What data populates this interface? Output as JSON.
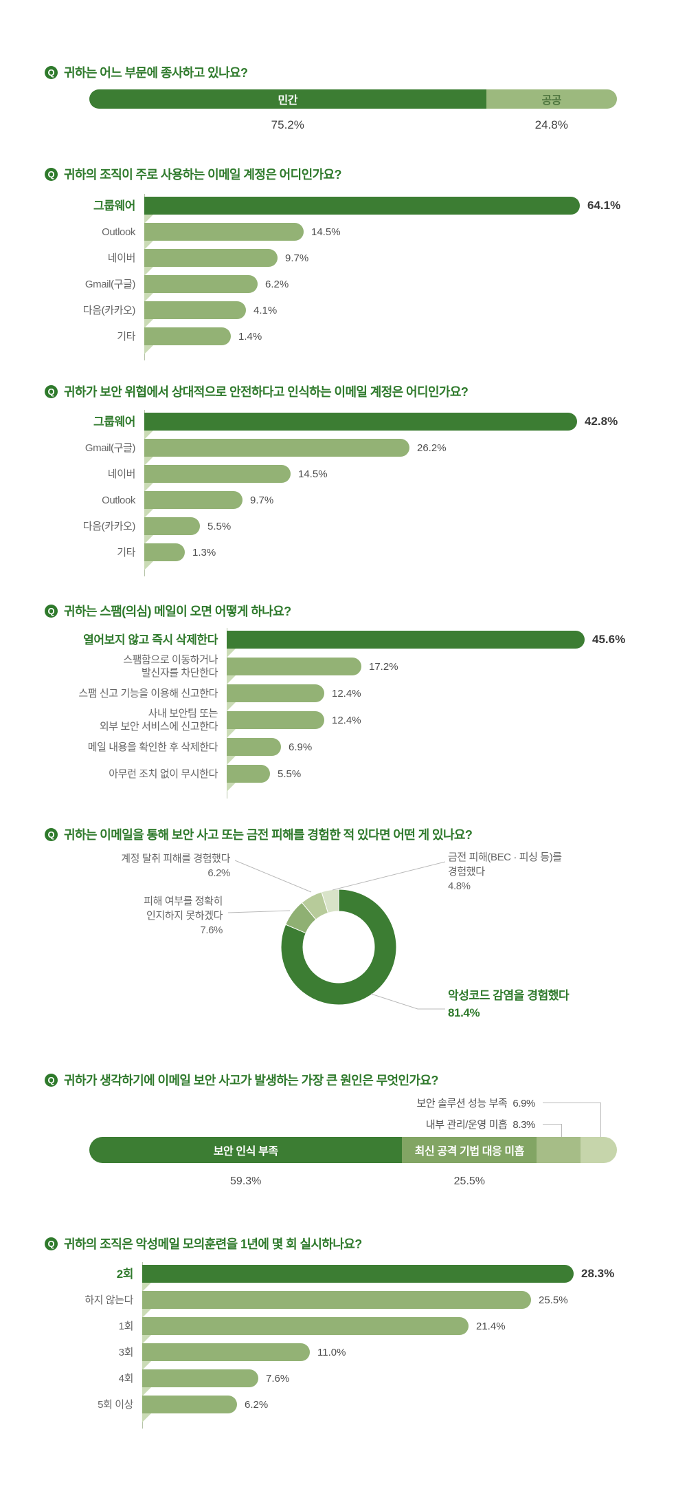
{
  "q_badge": "Q",
  "palette": {
    "dark_green": "#3c7d33",
    "medium_green": "#93b275",
    "question_green": "#2f7a2c",
    "stack_light": "#a6bd87",
    "stack_lightest": "#c6d5ab",
    "public_segment": "#9cb97e"
  },
  "chart_data": [
    {
      "type": "bar",
      "subtype": "stacked-horizontal",
      "title": "귀하는 어느 부문에 종사하고 있나요?",
      "categories": [
        "민간",
        "공공"
      ],
      "values": [
        75.2,
        24.8
      ],
      "value_labels": [
        "75.2%",
        "24.8%"
      ]
    },
    {
      "type": "bar",
      "subtype": "horizontal-rows",
      "title": "귀하의 조직이 주로 사용하는 이메일 계정은 어디인가요?",
      "categories": [
        "그룹웨어",
        "Outlook",
        "네이버",
        "Gmail(구글)",
        "다음(카카오)",
        "기타"
      ],
      "values": [
        64.1,
        14.5,
        9.7,
        6.2,
        4.1,
        1.4
      ],
      "value_labels": [
        "64.1%",
        "14.5%",
        "9.7%",
        "6.2%",
        "4.1%",
        "1.4%"
      ]
    },
    {
      "type": "bar",
      "subtype": "horizontal-rows",
      "title": "귀하가 보안 위협에서 상대적으로 안전하다고 인식하는 이메일 계정은 어디인가요?",
      "categories": [
        "그룹웨어",
        "Gmail(구글)",
        "네이버",
        "Outlook",
        "다음(카카오)",
        "기타"
      ],
      "values": [
        42.8,
        26.2,
        14.5,
        9.7,
        5.5,
        1.3
      ],
      "value_labels": [
        "42.8%",
        "26.2%",
        "14.5%",
        "9.7%",
        "5.5%",
        "1.3%"
      ]
    },
    {
      "type": "bar",
      "subtype": "horizontal-rows",
      "title": "귀하는 스팸(의심) 메일이 오면 어떻게 하나요?",
      "categories": [
        "열어보지 않고 즉시 삭제한다",
        "스팸함으로 이동하거나\n발신자를 차단한다",
        "스팸 신고 기능을 이용해 신고한다",
        "사내 보안팀 또는\n외부 보안 서비스에 신고한다",
        "메일 내용을 확인한 후 삭제한다",
        "아무런 조치 없이 무시한다"
      ],
      "values": [
        45.6,
        17.2,
        12.4,
        12.4,
        6.9,
        5.5
      ],
      "value_labels": [
        "45.6%",
        "17.2%",
        "12.4%",
        "12.4%",
        "6.9%",
        "5.5%"
      ]
    },
    {
      "type": "pie",
      "subtype": "donut",
      "title": "귀하는 이메일을 통해 보안 사고 또는 금전 피해를 경험한 적 있다면 어떤 게 있나요?",
      "labels": [
        {
          "text": "악성코드 감염을 경험했다",
          "pct": "81.4%"
        },
        {
          "text": "피해 여부를 정확히\n인지하지 못하겠다",
          "pct": "7.6%"
        },
        {
          "text": "계정 탈취 피해를 경험했다",
          "pct": "6.2%"
        },
        {
          "text": "금전 피해(BEC · 피싱 등)를\n경험했다",
          "pct": "4.8%"
        }
      ],
      "values": [
        81.4,
        7.6,
        6.2,
        4.8
      ]
    },
    {
      "type": "bar",
      "subtype": "stacked-horizontal",
      "title": "귀하가 생각하기에 이메일 보안 사고가 발생하는 가장 큰 원인은 무엇인가요?",
      "categories": [
        "보안 인식 부족",
        "최신 공격 기법 대응 미흡",
        "내부 관리/운영 미흡",
        "보안 솔루션 성능 부족"
      ],
      "values": [
        59.3,
        25.5,
        8.3,
        6.9
      ],
      "value_labels": [
        "59.3%",
        "25.5%",
        "8.3%",
        "6.9%"
      ]
    },
    {
      "type": "bar",
      "subtype": "horizontal-rows",
      "title": "귀하의 조직은 악성메일 모의훈련을 1년에 몇 회 실시하나요?",
      "categories": [
        "2회",
        "하지 않는다",
        "1회",
        "3회",
        "4회",
        "5회 이상"
      ],
      "values": [
        28.3,
        25.5,
        21.4,
        11.0,
        7.6,
        6.2
      ],
      "value_labels": [
        "28.3%",
        "25.5%",
        "21.4%",
        "11.0%",
        "7.6%",
        "6.2%"
      ]
    }
  ]
}
